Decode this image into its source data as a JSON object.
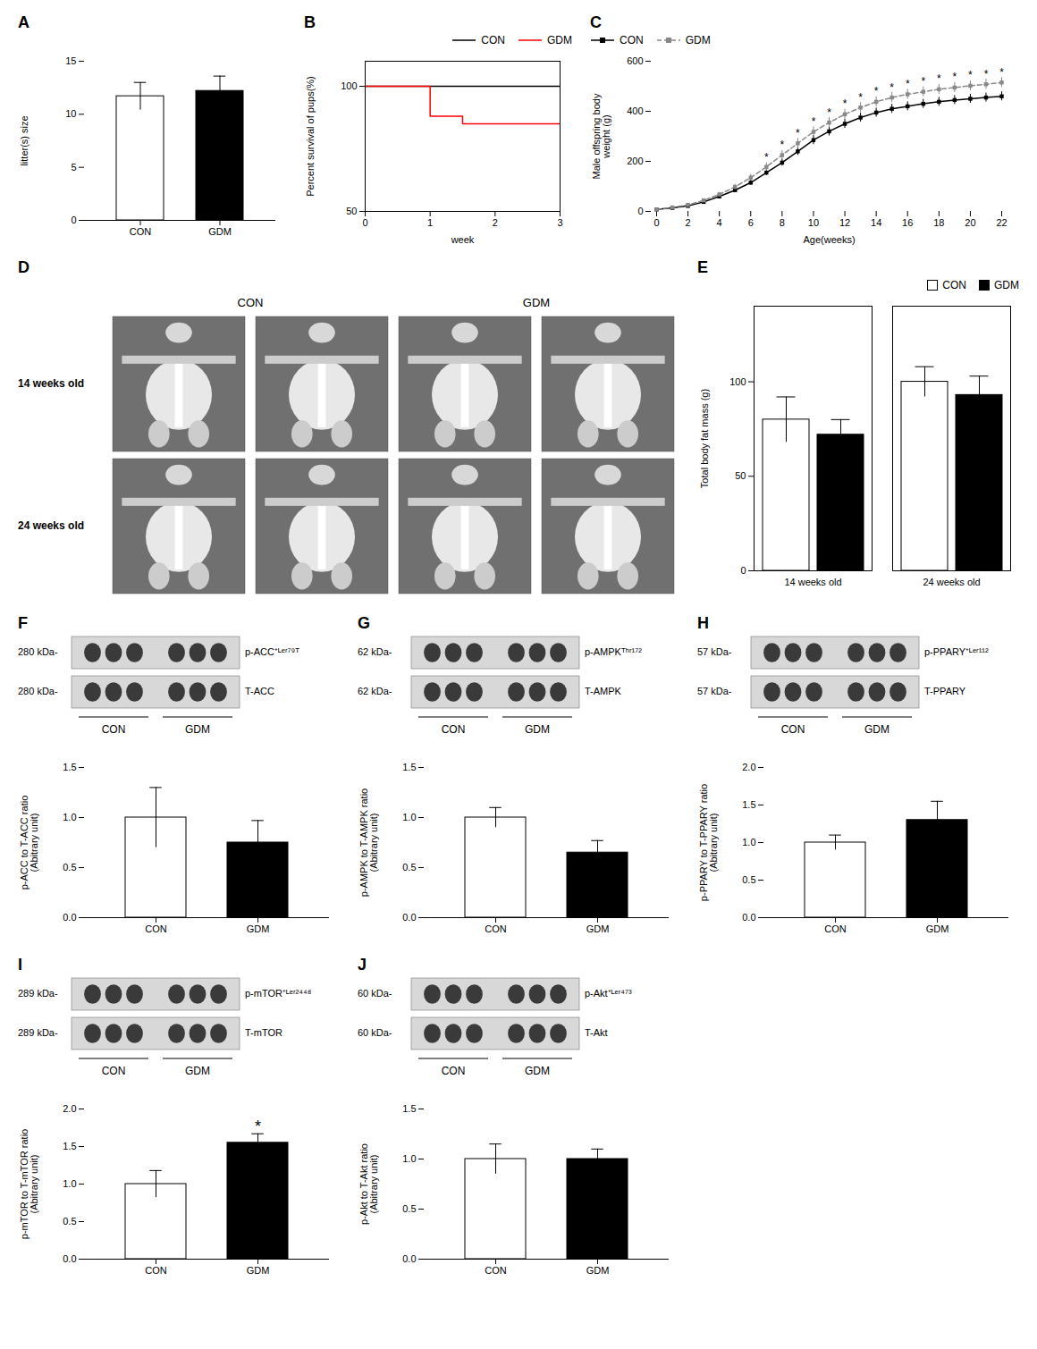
{
  "chart_data": [
    {
      "type": "bar",
      "title": "A",
      "categories": [
        "CON",
        "GDM"
      ],
      "values": [
        11.7,
        12.2
      ],
      "errors": [
        1.3,
        1.4
      ],
      "colors": [
        "white",
        "black"
      ],
      "ylabel": "litter(s) size",
      "ylim": [
        0,
        15
      ],
      "yticks": [
        0,
        5,
        10,
        15
      ]
    },
    {
      "type": "line",
      "title": "B",
      "series": [
        {
          "name": "CON",
          "color": "black",
          "x": [
            0,
            3
          ],
          "values": [
            100,
            100
          ]
        },
        {
          "name": "GDM",
          "color": "red",
          "x": [
            0,
            1.0,
            1.0,
            1.5,
            1.5,
            3
          ],
          "values": [
            100,
            100,
            88,
            88,
            85,
            85
          ]
        }
      ],
      "xlabel": "week",
      "ylabel": "Percent survival of pups(%)",
      "xlim": [
        0,
        3
      ],
      "ylim": [
        50,
        110
      ],
      "xticks": [
        0,
        1,
        2,
        3
      ],
      "yticks": [
        50,
        100
      ],
      "legend": "upper right"
    },
    {
      "type": "line",
      "title": "C",
      "x": [
        0,
        1,
        2,
        3,
        4,
        5,
        6,
        7,
        8,
        9,
        10,
        11,
        12,
        13,
        14,
        15,
        16,
        17,
        18,
        19,
        20,
        21,
        22
      ],
      "series": [
        {
          "name": "CON",
          "color": "black",
          "marker": "square",
          "line_style": "solid",
          "values": [
            8,
            14,
            22,
            38,
            60,
            85,
            115,
            155,
            195,
            240,
            285,
            320,
            350,
            375,
            395,
            410,
            420,
            430,
            438,
            445,
            450,
            455,
            460
          ],
          "errors": [
            2,
            3,
            4,
            5,
            6,
            8,
            10,
            12,
            14,
            16,
            18,
            18,
            18,
            18,
            18,
            18,
            18,
            18,
            18,
            18,
            18,
            18,
            18
          ]
        },
        {
          "name": "GDM",
          "color": "#888888",
          "marker": "square",
          "line_style": "dashed",
          "values": [
            8,
            16,
            26,
            44,
            68,
            98,
            135,
            178,
            225,
            272,
            318,
            355,
            388,
            415,
            438,
            455,
            468,
            478,
            488,
            495,
            502,
            508,
            515
          ],
          "errors": [
            2,
            3,
            4,
            6,
            8,
            10,
            13,
            16,
            18,
            20,
            20,
            20,
            20,
            20,
            20,
            20,
            20,
            20,
            20,
            20,
            20,
            20,
            20
          ]
        }
      ],
      "annotations": [
        {
          "text": "*",
          "series": "GDM",
          "x": [
            7,
            8,
            9,
            10,
            11,
            12,
            13,
            14,
            15,
            16,
            17,
            18,
            19,
            20,
            21,
            22
          ]
        }
      ],
      "xlabel": "Age(weeks)",
      "ylabel": "Male offspring body\nweight (g)",
      "xlim": [
        0,
        22
      ],
      "ylim": [
        0,
        600
      ],
      "xticks": [
        0,
        2,
        4,
        6,
        8,
        10,
        12,
        14,
        16,
        18,
        20,
        22
      ],
      "yticks": [
        0,
        200,
        400,
        600
      ],
      "legend": "upper left"
    },
    {
      "type": "image",
      "title": "D",
      "columns": [
        "CON",
        "GDM"
      ],
      "rows": [
        "14 weeks old",
        "24 weeks old"
      ]
    },
    {
      "type": "bar",
      "title": "E",
      "categories": [
        "14 weeks old",
        "24 weeks old"
      ],
      "series": [
        {
          "name": "CON",
          "color": "white",
          "values": [
            80,
            100
          ],
          "errors": [
            12,
            8
          ]
        },
        {
          "name": "GDM",
          "color": "black",
          "values": [
            72,
            93
          ],
          "errors": [
            8,
            10
          ]
        }
      ],
      "ylabel": "Total body fat mass (g)",
      "ylim": [
        0,
        140
      ],
      "yticks": [
        0,
        50,
        100
      ],
      "legend": "upper right"
    },
    {
      "type": "bar",
      "title": "F",
      "categories": [
        "CON",
        "GDM"
      ],
      "values": [
        1.0,
        0.75
      ],
      "errors": [
        0.3,
        0.22
      ],
      "colors": [
        "white",
        "black"
      ],
      "ylabel": "p-ACC to T-ACC ratio\n(Abitrary unit)",
      "ylim": [
        0,
        1.5
      ],
      "yticks": [
        {
          "value": 0.0,
          "label": "0.0"
        },
        {
          "value": 0.5,
          "label": "0.5"
        },
        {
          "value": 1.0,
          "label": "1.0"
        },
        {
          "value": 1.5,
          "label": "1.5"
        }
      ],
      "blot": {
        "bands": [
          {
            "kda": "280 kDa-",
            "label": "p-ACC⁺ᴸᵉʳ⁷⁹ᵀ"
          },
          {
            "kda": "280 kDa-",
            "label": "T-ACC"
          }
        ],
        "groups": [
          "CON",
          "GDM"
        ]
      }
    },
    {
      "type": "bar",
      "title": "G",
      "categories": [
        "CON",
        "GDM"
      ],
      "values": [
        1.0,
        0.65
      ],
      "errors": [
        0.1,
        0.12
      ],
      "colors": [
        "white",
        "black"
      ],
      "ylabel": "p-AMPK to T-AMPK ratio\n(Abitrary unit)",
      "ylim": [
        0,
        1.5
      ],
      "yticks": [
        {
          "value": 0.0,
          "label": "0.0"
        },
        {
          "value": 0.5,
          "label": "0.5"
        },
        {
          "value": 1.0,
          "label": "1.0"
        },
        {
          "value": 1.5,
          "label": "1.5"
        }
      ],
      "blot": {
        "bands": [
          {
            "kda": "62 kDa-",
            "label": "p-AMPKᵀʰʳ¹⁷²"
          },
          {
            "kda": "62 kDa-",
            "label": "T-AMPK"
          }
        ],
        "groups": [
          "CON",
          "GDM"
        ]
      }
    },
    {
      "type": "bar",
      "title": "H",
      "categories": [
        "CON",
        "GDM"
      ],
      "values": [
        1.0,
        1.3
      ],
      "errors": [
        0.1,
        0.25
      ],
      "colors": [
        "white",
        "black"
      ],
      "ylabel": "p-PPARY to T-PPARY ratio\n(Abitrary unit)",
      "ylim": [
        0,
        2.0
      ],
      "yticks": [
        {
          "value": 0.0,
          "label": "0.0"
        },
        {
          "value": 0.5,
          "label": "0.5"
        },
        {
          "value": 1.0,
          "label": "1.0"
        },
        {
          "value": 1.5,
          "label": "1.5"
        },
        {
          "value": 2.0,
          "label": "2.0"
        }
      ],
      "blot": {
        "bands": [
          {
            "kda": "57 kDa-",
            "label": "p-PPARY⁺ᴸᵉʳ¹¹²"
          },
          {
            "kda": "57 kDa-",
            "label": "T-PPARY"
          }
        ],
        "groups": [
          "CON",
          "GDM"
        ]
      }
    },
    {
      "type": "bar",
      "title": "I",
      "categories": [
        "CON",
        "GDM"
      ],
      "values": [
        1.0,
        1.55
      ],
      "errors": [
        0.18,
        0.12
      ],
      "colors": [
        "white",
        "black"
      ],
      "ylabel": "p-mTOR to T-mTOR ratio\n(Abitrary unit)",
      "ylim": [
        0,
        2.0
      ],
      "yticks": [
        {
          "value": 0.0,
          "label": "0.0"
        },
        {
          "value": 0.5,
          "label": "0.5"
        },
        {
          "value": 1.0,
          "label": "1.0"
        },
        {
          "value": 1.5,
          "label": "1.5"
        },
        {
          "value": 2.0,
          "label": "2.0"
        }
      ],
      "annotations": [
        {
          "text": "*",
          "category": "GDM"
        }
      ],
      "blot": {
        "bands": [
          {
            "kda": "289 kDa-",
            "label": "p-mTOR⁺ᴸᵉʳ²⁴⁴⁸"
          },
          {
            "kda": "289 kDa-",
            "label": "T-mTOR"
          }
        ],
        "groups": [
          "CON",
          "GDM"
        ]
      }
    },
    {
      "type": "bar",
      "title": "J",
      "categories": [
        "CON",
        "GDM"
      ],
      "values": [
        1.0,
        1.0
      ],
      "errors": [
        0.15,
        0.1
      ],
      "colors": [
        "white",
        "black"
      ],
      "ylabel": "p-Akt to T-Akt ratio\n(Abitrary unit)",
      "ylim": [
        0,
        1.5
      ],
      "yticks": [
        {
          "value": 0.0,
          "label": "0.0"
        },
        {
          "value": 0.5,
          "label": "0.5"
        },
        {
          "value": 1.0,
          "label": "1.0"
        },
        {
          "value": 1.5,
          "label": "1.5"
        }
      ],
      "blot": {
        "bands": [
          {
            "kda": "60 kDa-",
            "label": "p-Akt⁺ᴸᵉʳ⁴⁷³"
          },
          {
            "kda": "60 kDa-",
            "label": "T-Akt"
          }
        ],
        "groups": [
          "CON",
          "GDM"
        ]
      }
    }
  ]
}
